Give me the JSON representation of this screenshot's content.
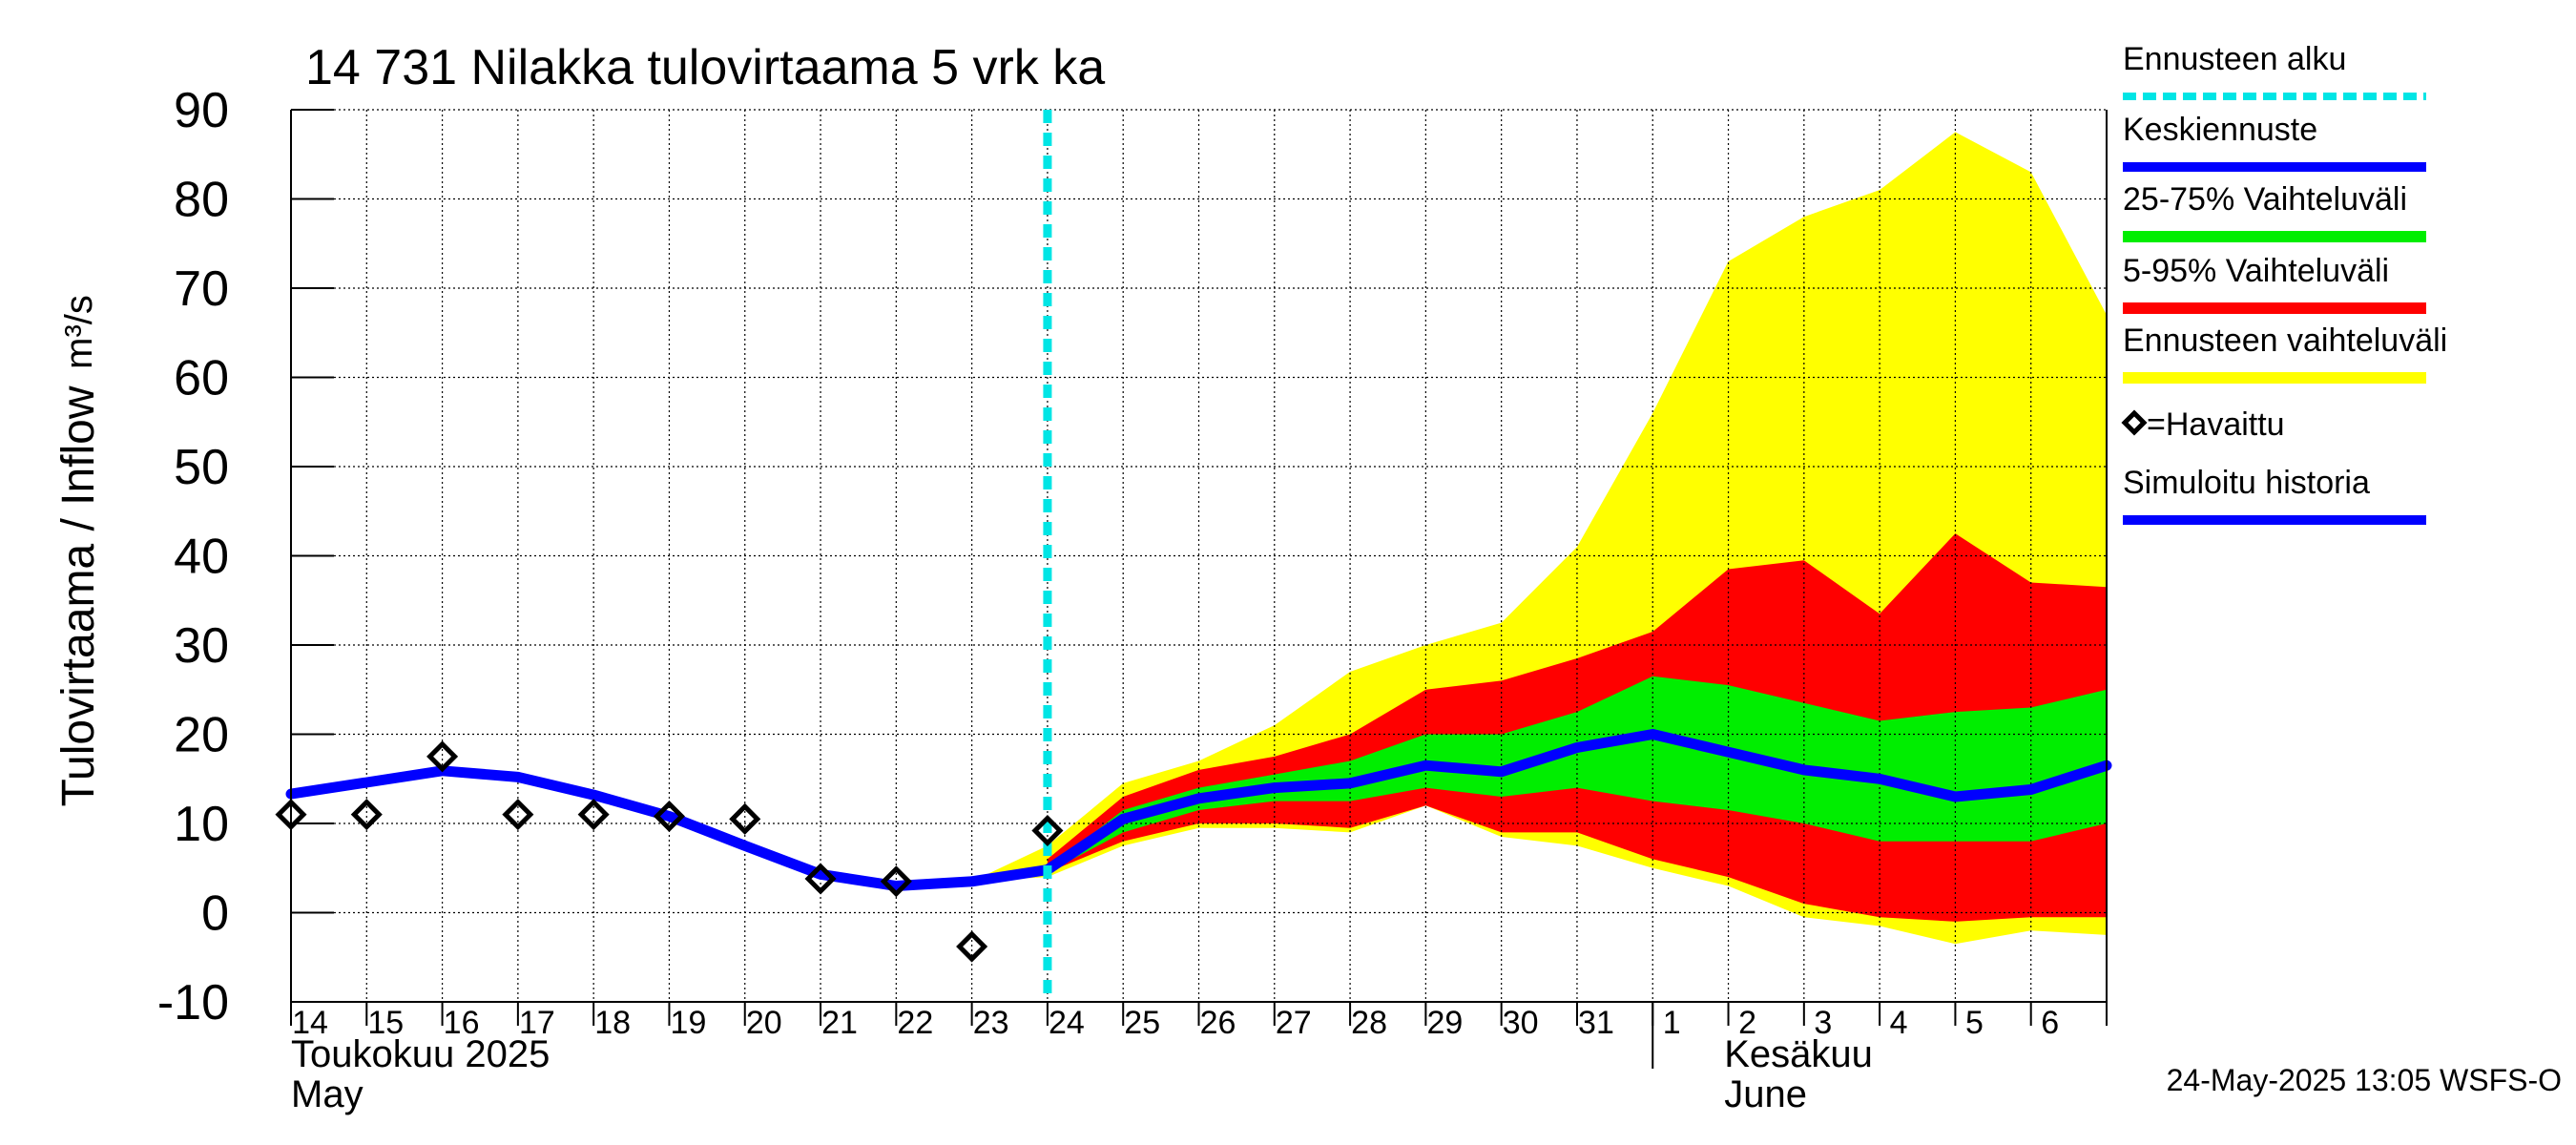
{
  "chart_data": {
    "type": "area",
    "title": "14 731 Nilakka tulovirtaama 5 vrk ka",
    "ylabel": "Tulovirtaama / Inflow",
    "yunit": "m³/s",
    "ylim": [
      -10,
      90
    ],
    "yticks": [
      -10,
      0,
      10,
      20,
      30,
      40,
      50,
      60,
      70,
      80,
      90
    ],
    "grid": true,
    "x": [
      "2025-05-14",
      "2025-05-15",
      "2025-05-16",
      "2025-05-17",
      "2025-05-18",
      "2025-05-19",
      "2025-05-20",
      "2025-05-21",
      "2025-05-22",
      "2025-05-23",
      "2025-05-24",
      "2025-05-25",
      "2025-05-26",
      "2025-05-27",
      "2025-05-28",
      "2025-05-29",
      "2025-05-30",
      "2025-05-31",
      "2025-06-01",
      "2025-06-02",
      "2025-06-03",
      "2025-06-04",
      "2025-06-05",
      "2025-06-06",
      "2025-06-07"
    ],
    "x_tick_labels": [
      "14",
      "15",
      "16",
      "17",
      "18",
      "19",
      "20",
      "21",
      "22",
      "23",
      "24",
      "25",
      "26",
      "27",
      "28",
      "29",
      "30",
      "31",
      "1",
      "2",
      "3",
      "4",
      "5",
      "6"
    ],
    "month_labels": [
      {
        "fi": "Toukokuu  2025",
        "en": "May"
      },
      {
        "fi": "Kesäkuu",
        "en": "June"
      }
    ],
    "forecast_start": "2025-05-24",
    "legend_placement": "right",
    "legend": [
      {
        "label": "Ennusteen alku",
        "color": "#00e5e5",
        "style": "dashed"
      },
      {
        "label": "Keskiennuste",
        "color": "#0000ff",
        "style": "line"
      },
      {
        "label": "25-75% Vaihteluväli",
        "color": "#00ee00",
        "style": "band"
      },
      {
        "label": "5-95% Vaihteluväli",
        "color": "#ff0000",
        "style": "band"
      },
      {
        "label": "Ennusteen vaihteluväli",
        "color": "#ffff00",
        "style": "band"
      },
      {
        "label": "=Havaittu",
        "color": "#000000",
        "style": "diamond"
      },
      {
        "label": "Simuloitu historia",
        "color": "#0000ff",
        "style": "line"
      }
    ],
    "series": [
      {
        "name": "Ennusteen vaihteluväli",
        "color": "#ffff00",
        "x": [
          "2025-05-23",
          "2025-05-24",
          "2025-05-25",
          "2025-05-26",
          "2025-05-27",
          "2025-05-28",
          "2025-05-29",
          "2025-05-30",
          "2025-05-31",
          "2025-06-01",
          "2025-06-02",
          "2025-06-03",
          "2025-06-04",
          "2025-06-05",
          "2025-06-06",
          "2025-06-07"
        ],
        "lower": [
          3.5,
          4.0,
          7.5,
          9.5,
          9.5,
          9.0,
          12.0,
          8.5,
          7.5,
          5.0,
          3.0,
          -0.5,
          -1.5,
          -3.5,
          -2.0,
          -2.5
        ],
        "upper": [
          3.5,
          7.5,
          14.5,
          17.0,
          21.0,
          27.0,
          30.0,
          32.5,
          41.0,
          56.0,
          73.0,
          78.0,
          81.0,
          87.5,
          83.0,
          67.0
        ]
      },
      {
        "name": "5-95% Vaihteluväli",
        "color": "#ff0000",
        "x": [
          "2025-05-24",
          "2025-05-25",
          "2025-05-26",
          "2025-05-27",
          "2025-05-28",
          "2025-05-29",
          "2025-05-30",
          "2025-05-31",
          "2025-06-01",
          "2025-06-02",
          "2025-06-03",
          "2025-06-04",
          "2025-06-05",
          "2025-06-06",
          "2025-06-07"
        ],
        "lower": [
          4.5,
          8.0,
          10.0,
          10.0,
          9.5,
          12.0,
          9.0,
          9.0,
          6.0,
          4.0,
          1.0,
          -0.5,
          -1.0,
          -0.5,
          -0.5
        ],
        "upper": [
          6.0,
          13.0,
          16.0,
          17.5,
          20.0,
          25.0,
          26.0,
          28.5,
          31.5,
          38.5,
          39.5,
          33.5,
          42.5,
          37.0,
          36.5
        ]
      },
      {
        "name": "25-75% Vaihteluväli",
        "color": "#00ee00",
        "x": [
          "2025-05-24",
          "2025-05-25",
          "2025-05-26",
          "2025-05-27",
          "2025-05-28",
          "2025-05-29",
          "2025-05-30",
          "2025-05-31",
          "2025-06-01",
          "2025-06-02",
          "2025-06-03",
          "2025-06-04",
          "2025-06-05",
          "2025-06-06",
          "2025-06-07"
        ],
        "lower": [
          4.5,
          9.0,
          11.5,
          12.5,
          12.5,
          14.0,
          13.0,
          14.0,
          12.5,
          11.5,
          10.0,
          8.0,
          8.0,
          8.0,
          10.0
        ],
        "upper": [
          5.0,
          11.5,
          14.0,
          15.5,
          17.0,
          20.0,
          20.0,
          22.5,
          26.5,
          25.5,
          23.5,
          21.5,
          22.5,
          23.0,
          25.0
        ]
      },
      {
        "name": "Keskiennuste",
        "color": "#0000ff",
        "x": [
          "2025-05-24",
          "2025-05-25",
          "2025-05-26",
          "2025-05-27",
          "2025-05-28",
          "2025-05-29",
          "2025-05-30",
          "2025-05-31",
          "2025-06-01",
          "2025-06-02",
          "2025-06-03",
          "2025-06-04",
          "2025-06-05",
          "2025-06-06",
          "2025-06-07"
        ],
        "values": [
          4.8,
          10.5,
          12.8,
          14.0,
          14.5,
          16.5,
          15.8,
          18.5,
          20.0,
          18.0,
          16.0,
          15.0,
          13.0,
          13.8,
          16.5
        ]
      },
      {
        "name": "Simuloitu historia",
        "color": "#0000ff",
        "x": [
          "2025-05-14",
          "2025-05-15",
          "2025-05-16",
          "2025-05-17",
          "2025-05-18",
          "2025-05-19",
          "2025-05-20",
          "2025-05-21",
          "2025-05-22",
          "2025-05-23",
          "2025-05-24"
        ],
        "values": [
          13.3,
          14.6,
          15.9,
          15.2,
          13.2,
          10.8,
          7.5,
          4.3,
          3.0,
          3.5,
          4.8
        ]
      },
      {
        "name": "=Havaittu",
        "color": "#000000",
        "x": [
          "2025-05-14",
          "2025-05-15",
          "2025-05-16",
          "2025-05-17",
          "2025-05-18",
          "2025-05-19",
          "2025-05-20",
          "2025-05-21",
          "2025-05-22",
          "2025-05-23",
          "2025-05-24"
        ],
        "values": [
          11.0,
          11.0,
          17.5,
          11.0,
          11.0,
          10.8,
          10.5,
          3.8,
          3.5,
          -3.8,
          9.2
        ]
      }
    ],
    "footer": "24-May-2025 13:05 WSFS-O"
  }
}
